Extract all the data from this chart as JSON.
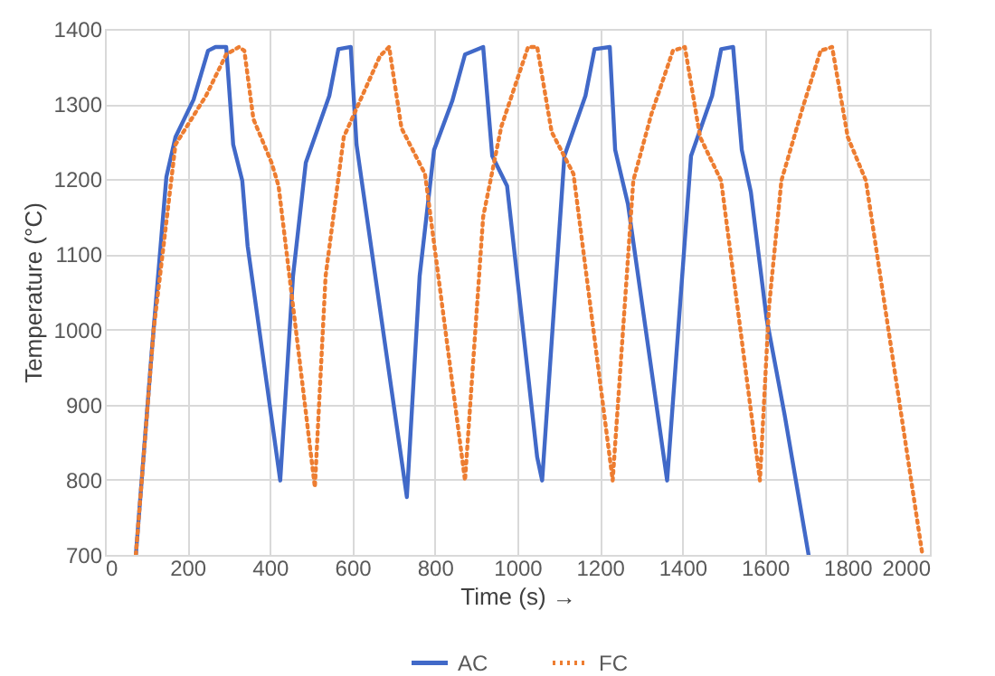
{
  "chart_data": {
    "type": "line",
    "xlabel": "Time (s) →",
    "ylabel": "Temperature (°C)",
    "xlim": [
      0,
      2000
    ],
    "xticks": [
      0,
      200,
      400,
      600,
      800,
      1000,
      1200,
      1400,
      1600,
      1800,
      2000
    ],
    "ylim": [
      700,
      1400
    ],
    "yticks": [
      700,
      800,
      900,
      1000,
      1100,
      1200,
      1300,
      1400
    ],
    "grid": true,
    "legend": "bottom",
    "marker": "none",
    "series": [
      {
        "name": "AC",
        "color": "#4169c8",
        "line_style": "solid",
        "x": [
          75,
          113,
          149,
          171,
          215,
          250,
          268,
          294,
          311,
          333,
          346,
          425,
          456,
          487,
          544,
          566,
          596,
          610,
          732,
          763,
          798,
          842,
          873,
          917,
          939,
          975,
          1048,
          1060,
          1114,
          1165,
          1187,
          1224,
          1237,
          1268,
          1363,
          1421,
          1472,
          1494,
          1523,
          1544,
          1566,
          1604,
          1648,
          1706
        ],
        "values": [
          700,
          967,
          1203,
          1256,
          1306,
          1371,
          1376,
          1376,
          1246,
          1198,
          1111,
          799,
          1071,
          1222,
          1311,
          1373,
          1376,
          1246,
          777,
          1071,
          1239,
          1304,
          1366,
          1376,
          1231,
          1191,
          830,
          799,
          1231,
          1311,
          1373,
          1376,
          1239,
          1167,
          799,
          1231,
          1311,
          1373,
          1376,
          1239,
          1183,
          1015,
          886,
          700
        ]
      },
      {
        "name": "FC",
        "color": "#ed7d31",
        "line_style": "dotted",
        "x": [
          75,
          118,
          171,
          245,
          294,
          325,
          338,
          360,
          404,
          421,
          509,
          535,
          579,
          667,
          689,
          719,
          776,
          873,
          917,
          961,
          1026,
          1048,
          1083,
          1136,
          1231,
          1281,
          1325,
          1377,
          1406,
          1443,
          1494,
          1588,
          1610,
          1640,
          1691,
          1735,
          1763,
          1801,
          1845,
          1982
        ],
        "values": [
          700,
          999,
          1246,
          1311,
          1366,
          1376,
          1371,
          1280,
          1222,
          1191,
          790,
          1071,
          1256,
          1364,
          1376,
          1268,
          1207,
          799,
          1150,
          1270,
          1376,
          1376,
          1263,
          1207,
          799,
          1198,
          1287,
          1371,
          1376,
          1256,
          1198,
          799,
          1030,
          1198,
          1294,
          1371,
          1376,
          1256,
          1198,
          700
        ]
      }
    ]
  }
}
